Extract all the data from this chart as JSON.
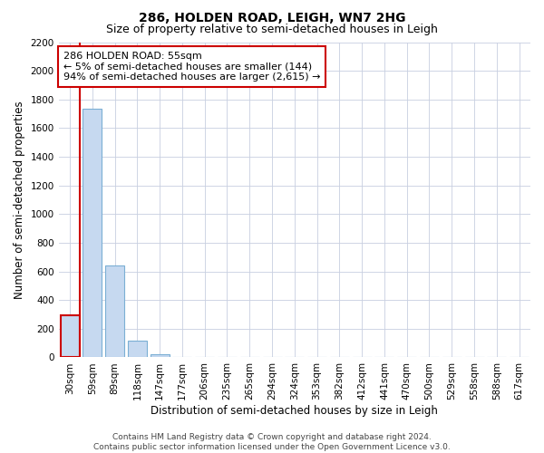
{
  "title": "286, HOLDEN ROAD, LEIGH, WN7 2HG",
  "subtitle": "Size of property relative to semi-detached houses in Leigh",
  "xlabel": "Distribution of semi-detached houses by size in Leigh",
  "ylabel": "Number of semi-detached properties",
  "bar_labels": [
    "30sqm",
    "59sqm",
    "89sqm",
    "118sqm",
    "147sqm",
    "177sqm",
    "206sqm",
    "235sqm",
    "265sqm",
    "294sqm",
    "324sqm",
    "353sqm",
    "382sqm",
    "412sqm",
    "441sqm",
    "470sqm",
    "500sqm",
    "529sqm",
    "558sqm",
    "588sqm",
    "617sqm"
  ],
  "bar_values": [
    295,
    1735,
    640,
    115,
    25,
    5,
    0,
    0,
    0,
    0,
    0,
    0,
    0,
    0,
    0,
    0,
    0,
    0,
    0,
    0,
    0
  ],
  "bar_color": "#c6d9f0",
  "bar_edge_color": "#7bafd4",
  "highlight_bar_index": 0,
  "highlight_edge_color": "#cc0000",
  "ylim": [
    0,
    2200
  ],
  "yticks": [
    0,
    200,
    400,
    600,
    800,
    1000,
    1200,
    1400,
    1600,
    1800,
    2000,
    2200
  ],
  "annotation_title": "286 HOLDEN ROAD: 55sqm",
  "annotation_line1": "← 5% of semi-detached houses are smaller (144)",
  "annotation_line2": "94% of semi-detached houses are larger (2,615) →",
  "annotation_box_color": "#ffffff",
  "annotation_box_edge": "#cc0000",
  "vline_color": "#cc0000",
  "footer1": "Contains HM Land Registry data © Crown copyright and database right 2024.",
  "footer2": "Contains public sector information licensed under the Open Government Licence v3.0.",
  "background_color": "#ffffff",
  "grid_color": "#c8cfe0",
  "title_fontsize": 10,
  "subtitle_fontsize": 9,
  "axis_label_fontsize": 8.5,
  "tick_fontsize": 7.5,
  "annotation_fontsize": 8,
  "footer_fontsize": 6.5
}
